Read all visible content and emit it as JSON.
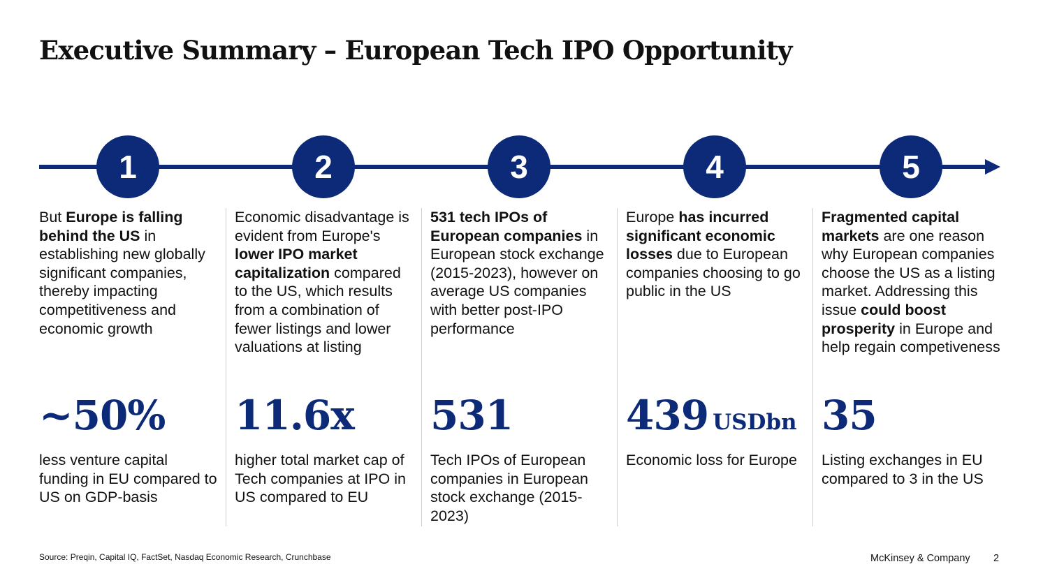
{
  "title": "Executive Summary – European Tech IPO Opportunity",
  "colors": {
    "accent": "#0d2a78",
    "divider": "#cfcfcf",
    "text": "#111111"
  },
  "steps": [
    {
      "number": "1",
      "description": [
        {
          "text": "But ",
          "bold": false
        },
        {
          "text": "Europe is falling behind the US",
          "bold": true
        },
        {
          "text": " in establishing new globally significant companies, thereby impacting competitiveness and economic growth",
          "bold": false
        }
      ],
      "stat": "~50%",
      "stat_unit": "",
      "stat_label": "less venture capital funding in EU compared to US on GDP-basis"
    },
    {
      "number": "2",
      "description": [
        {
          "text": "Economic disadvantage is evident from Europe's ",
          "bold": false
        },
        {
          "text": "lower IPO market capitalization",
          "bold": true
        },
        {
          "text": " compared to the US, which results from a combination of fewer listings and lower valuations at listing",
          "bold": false
        }
      ],
      "stat": "11.6x",
      "stat_unit": "",
      "stat_label": "higher total market cap of Tech companies at IPO in US compared to EU"
    },
    {
      "number": "3",
      "description": [
        {
          "text": "531 tech IPOs of European companies",
          "bold": true
        },
        {
          "text": " in European stock exchange (2015-2023), however on average US companies with better post-IPO performance",
          "bold": false
        }
      ],
      "stat": "531",
      "stat_unit": "",
      "stat_label": "Tech IPOs of European companies in European stock exchange (2015-2023)"
    },
    {
      "number": "4",
      "description": [
        {
          "text": "Europe ",
          "bold": false
        },
        {
          "text": "has incurred significant economic losses",
          "bold": true
        },
        {
          "text": " due to European companies choosing to go public in the US",
          "bold": false
        }
      ],
      "stat": "439",
      "stat_unit": "USDbn",
      "stat_label": "Economic loss for Europe"
    },
    {
      "number": "5",
      "description": [
        {
          "text": "Fragmented capital markets",
          "bold": true
        },
        {
          "text": " are one reason why European companies choose the US as a listing market. Addressing this issue ",
          "bold": false
        },
        {
          "text": "could boost prosperity",
          "bold": true
        },
        {
          "text": " in Europe and help regain competiveness",
          "bold": false
        }
      ],
      "stat": "35",
      "stat_unit": "",
      "stat_label": "Listing exchanges in EU compared to 3 in the US"
    }
  ],
  "footer": {
    "source": "Source: Preqin, Capital IQ, FactSet, Nasdaq Economic Research, Crunchbase",
    "brand": "McKinsey & Company",
    "page_number": "2"
  }
}
